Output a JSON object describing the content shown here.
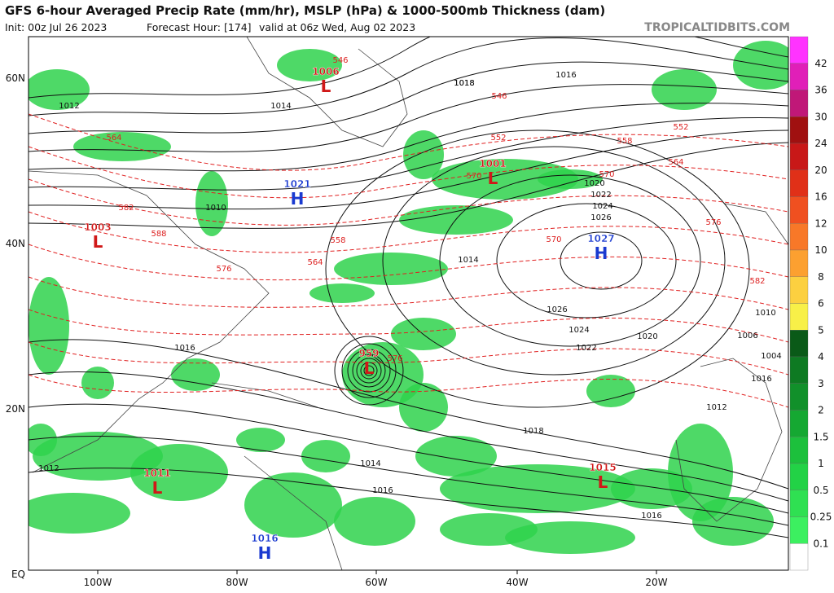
{
  "header": {
    "title": "GFS 6-hour Averaged Precip Rate (mm/hr), MSLP (hPa) & 1000-500mb Thickness (dam)",
    "init": "Init: 00z Jul 26 2023",
    "forecast_hour": "Forecast Hour: [174]",
    "valid": "valid at 06z Wed, Aug 02 2023",
    "source": "TROPICALTIDBITS.COM"
  },
  "map": {
    "lat_labels": [
      "60N",
      "40N",
      "20N",
      "EQ"
    ],
    "lon_labels": [
      "100W",
      "80W",
      "60W",
      "40W",
      "20W"
    ],
    "centers": [
      {
        "type": "L",
        "pressure": 1006
      },
      {
        "type": "H",
        "pressure": 1021
      },
      {
        "type": "L",
        "pressure": 1003
      },
      {
        "type": "L",
        "pressure": 1001
      },
      {
        "type": "H",
        "pressure": 1027
      },
      {
        "type": "L",
        "pressure": 959
      },
      {
        "type": "L",
        "pressure": 1011
      },
      {
        "type": "L",
        "pressure": 1015
      },
      {
        "type": "H",
        "pressure": 1016
      }
    ],
    "isobar_labels": [
      1012,
      1010,
      1014,
      1016,
      1018,
      1020,
      1022,
      1024,
      1026,
      1018,
      1016,
      1014,
      1012,
      1016,
      1014,
      1012,
      1016,
      1008,
      1004,
      1006,
      1010,
      1012,
      1016,
      1018,
      1020,
      1022,
      1024,
      1026
    ],
    "thickness_labels": [
      546,
      546,
      552,
      552,
      558,
      558,
      564,
      564,
      570,
      570,
      576,
      576,
      582,
      582,
      588,
      564,
      570,
      576
    ]
  },
  "colorbar": {
    "labels": [
      42,
      36,
      30,
      24,
      20,
      16,
      12,
      10,
      8,
      6,
      5,
      4,
      3,
      2,
      1.5,
      1,
      0.5,
      0.25,
      0.1
    ],
    "colors": [
      "#ff33ff",
      "#e01fb8",
      "#c01878",
      "#a01010",
      "#c81818",
      "#e03018",
      "#f05020",
      "#f87828",
      "#fca030",
      "#fcd040",
      "#f8f048",
      "#0a5a18",
      "#0e7a22",
      "#11902a",
      "#15a832",
      "#1cc03c",
      "#22d246",
      "#2fe052",
      "#3cf060"
    ]
  }
}
